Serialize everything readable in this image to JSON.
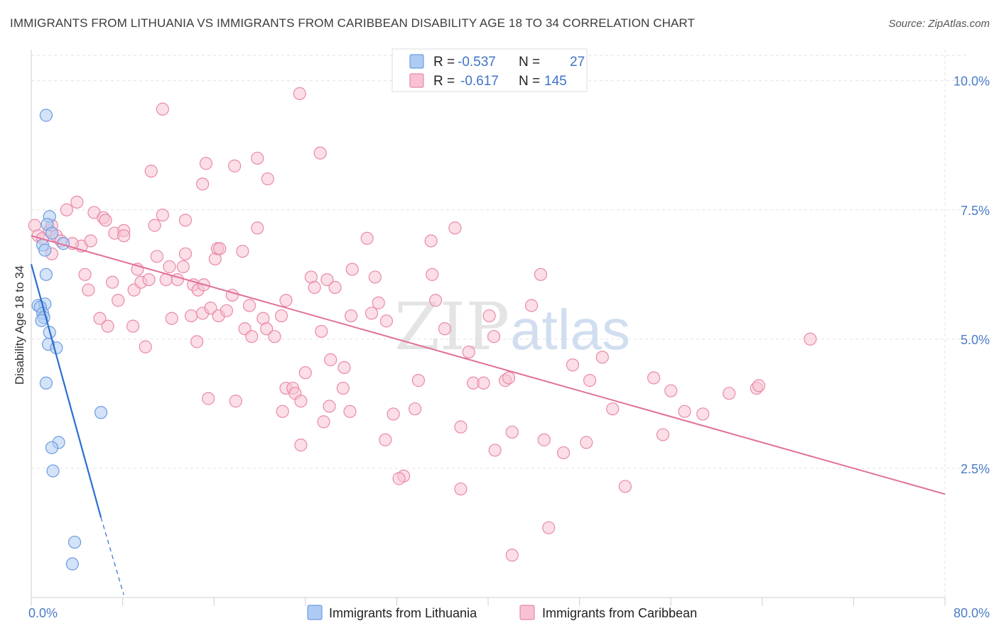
{
  "title": "IMMIGRANTS FROM LITHUANIA VS IMMIGRANTS FROM CARIBBEAN DISABILITY AGE 18 TO 34 CORRELATION CHART",
  "source": "Source: ZipAtlas.com",
  "watermark": {
    "zip": "ZIP",
    "atlas": "atlas"
  },
  "colors": {
    "lithuania_fill": "#aeccf3",
    "lithuania_stroke": "#6d9be0",
    "lithuania_line": "#2b6fd1",
    "caribbean_fill": "#f8c2d2",
    "caribbean_stroke": "#e98aa9",
    "caribbean_line": "#e0709a",
    "tick_text": "#4a7cc7",
    "grid": "#e2e2e2"
  },
  "stats_legend": {
    "r_label": "R =",
    "n_label": "N =",
    "rows": [
      {
        "r": "-0.537",
        "n": "27"
      },
      {
        "r": "-0.617",
        "n": "145"
      }
    ]
  },
  "chart_data": {
    "type": "scatter",
    "ylabel": "Disability Age 18 to 34",
    "xlim": [
      0,
      80
    ],
    "ylim": [
      0,
      10.6
    ],
    "x_ticks": [
      {
        "value": 0,
        "label": "0.0%"
      },
      {
        "value": 80,
        "label": "80.0%"
      }
    ],
    "y_ticks": [
      {
        "value": 2.5,
        "label": "2.5%"
      },
      {
        "value": 5.0,
        "label": "5.0%"
      },
      {
        "value": 7.5,
        "label": "7.5%"
      },
      {
        "value": 10.0,
        "label": "10.0%"
      }
    ],
    "grid": true,
    "legend_position": "bottom-center",
    "series": [
      {
        "name": "Immigrants from Lithuania",
        "trend": {
          "x1": 0,
          "y1": 6.45,
          "x2": 6.1,
          "y2": 1.55,
          "dash_to_x": 8.1,
          "dash_to_y": 0.05
        },
        "points": [
          [
            1.3,
            9.33
          ],
          [
            1.6,
            7.37
          ],
          [
            1.4,
            7.22
          ],
          [
            1.8,
            7.05
          ],
          [
            1.0,
            6.82
          ],
          [
            2.8,
            6.85
          ],
          [
            1.2,
            6.72
          ],
          [
            1.3,
            6.25
          ],
          [
            0.6,
            5.65
          ],
          [
            1.2,
            5.68
          ],
          [
            0.8,
            5.62
          ],
          [
            1.0,
            5.5
          ],
          [
            1.1,
            5.42
          ],
          [
            0.9,
            5.36
          ],
          [
            1.6,
            5.13
          ],
          [
            1.5,
            4.9
          ],
          [
            2.2,
            4.83
          ],
          [
            1.3,
            4.15
          ],
          [
            6.1,
            3.58
          ],
          [
            2.4,
            3.0
          ],
          [
            1.8,
            2.9
          ],
          [
            1.9,
            2.45
          ],
          [
            3.8,
            1.07
          ],
          [
            3.6,
            0.65
          ]
        ]
      },
      {
        "name": "Immigrants from Caribbean",
        "trend": {
          "x1": 0,
          "y1": 7.0,
          "x2": 80,
          "y2": 2.0
        },
        "points": [
          [
            0.3,
            7.2
          ],
          [
            0.6,
            7.0
          ],
          [
            1.0,
            6.95
          ],
          [
            1.6,
            7.1
          ],
          [
            1.8,
            7.2
          ],
          [
            2.2,
            7.0
          ],
          [
            2.6,
            6.9
          ],
          [
            1.8,
            6.65
          ],
          [
            3.1,
            7.5
          ],
          [
            4.0,
            7.65
          ],
          [
            5.5,
            7.45
          ],
          [
            6.3,
            7.35
          ],
          [
            6.5,
            7.3
          ],
          [
            7.3,
            7.05
          ],
          [
            8.1,
            7.1
          ],
          [
            8.1,
            7.0
          ],
          [
            4.4,
            6.8
          ],
          [
            5.2,
            6.9
          ],
          [
            3.6,
            6.85
          ],
          [
            4.7,
            6.25
          ],
          [
            5.0,
            5.95
          ],
          [
            7.1,
            6.1
          ],
          [
            7.6,
            5.75
          ],
          [
            9.0,
            5.95
          ],
          [
            9.3,
            6.35
          ],
          [
            9.6,
            6.1
          ],
          [
            10.3,
            6.15
          ],
          [
            10.8,
            7.2
          ],
          [
            10.5,
            8.25
          ],
          [
            11.5,
            7.4
          ],
          [
            11.0,
            6.6
          ],
          [
            12.1,
            6.4
          ],
          [
            12.8,
            6.15
          ],
          [
            13.3,
            6.4
          ],
          [
            13.5,
            6.65
          ],
          [
            14.2,
            6.05
          ],
          [
            14.6,
            5.95
          ],
          [
            14.0,
            5.45
          ],
          [
            14.5,
            4.95
          ],
          [
            12.3,
            5.4
          ],
          [
            11.8,
            6.15
          ],
          [
            8.9,
            5.25
          ],
          [
            6.0,
            5.4
          ],
          [
            6.7,
            5.25
          ],
          [
            10.0,
            4.85
          ],
          [
            15.3,
            8.4
          ],
          [
            15.0,
            5.5
          ],
          [
            15.1,
            6.05
          ],
          [
            15.5,
            3.85
          ],
          [
            15.7,
            5.6
          ],
          [
            16.1,
            6.55
          ],
          [
            16.3,
            6.75
          ],
          [
            16.4,
            5.45
          ],
          [
            16.5,
            6.75
          ],
          [
            17.1,
            5.55
          ],
          [
            17.6,
            5.85
          ],
          [
            17.9,
            3.8
          ],
          [
            18.5,
            6.7
          ],
          [
            18.7,
            5.2
          ],
          [
            19.1,
            5.65
          ],
          [
            19.3,
            5.05
          ],
          [
            19.8,
            7.15
          ],
          [
            20.3,
            5.4
          ],
          [
            20.6,
            5.2
          ],
          [
            21.3,
            5.05
          ],
          [
            21.9,
            5.45
          ],
          [
            22.3,
            5.75
          ],
          [
            22.0,
            3.6
          ],
          [
            22.3,
            4.05
          ],
          [
            22.9,
            4.05
          ],
          [
            23.1,
            3.95
          ],
          [
            23.6,
            3.8
          ],
          [
            23.6,
            2.95
          ],
          [
            24.0,
            4.35
          ],
          [
            24.5,
            6.2
          ],
          [
            24.8,
            6.0
          ],
          [
            25.4,
            5.15
          ],
          [
            26.2,
            4.6
          ],
          [
            26.1,
            3.7
          ],
          [
            25.6,
            3.4
          ],
          [
            25.9,
            6.15
          ],
          [
            26.6,
            6.0
          ],
          [
            27.9,
            3.6
          ],
          [
            28.1,
            6.35
          ],
          [
            27.3,
            4.05
          ],
          [
            27.4,
            4.45
          ],
          [
            28.0,
            5.45
          ],
          [
            29.4,
            6.95
          ],
          [
            30.1,
            6.2
          ],
          [
            30.4,
            5.7
          ],
          [
            29.8,
            5.5
          ],
          [
            31.1,
            5.35
          ],
          [
            31.0,
            3.05
          ],
          [
            31.7,
            3.55
          ],
          [
            32.6,
            2.35
          ],
          [
            32.2,
            2.3
          ],
          [
            33.6,
            3.65
          ],
          [
            33.9,
            4.2
          ],
          [
            35.0,
            6.9
          ],
          [
            35.4,
            5.75
          ],
          [
            35.1,
            6.25
          ],
          [
            36.2,
            5.2
          ],
          [
            37.6,
            3.3
          ],
          [
            37.6,
            2.1
          ],
          [
            37.1,
            7.15
          ],
          [
            38.3,
            4.75
          ],
          [
            38.7,
            4.15
          ],
          [
            39.6,
            4.15
          ],
          [
            40.1,
            5.45
          ],
          [
            40.5,
            5.05
          ],
          [
            40.6,
            2.85
          ],
          [
            41.5,
            4.2
          ],
          [
            41.8,
            4.25
          ],
          [
            42.1,
            3.2
          ],
          [
            42.1,
            0.82
          ],
          [
            43.8,
            5.65
          ],
          [
            44.6,
            6.25
          ],
          [
            44.9,
            3.05
          ],
          [
            45.3,
            1.35
          ],
          [
            46.6,
            2.8
          ],
          [
            47.4,
            4.5
          ],
          [
            48.6,
            3.0
          ],
          [
            48.9,
            4.2
          ],
          [
            50.0,
            4.65
          ],
          [
            50.9,
            3.65
          ],
          [
            52.0,
            2.15
          ],
          [
            54.5,
            4.25
          ],
          [
            55.3,
            3.15
          ],
          [
            56.0,
            4.0
          ],
          [
            57.2,
            3.6
          ],
          [
            58.8,
            3.55
          ],
          [
            61.1,
            3.95
          ],
          [
            63.5,
            4.05
          ],
          [
            63.7,
            4.1
          ],
          [
            68.2,
            5.0
          ],
          [
            23.5,
            9.75
          ],
          [
            11.5,
            9.45
          ],
          [
            17.8,
            8.35
          ],
          [
            19.8,
            8.5
          ],
          [
            25.3,
            8.6
          ],
          [
            15.0,
            8.0
          ],
          [
            20.7,
            8.1
          ],
          [
            13.5,
            7.3
          ]
        ]
      }
    ]
  }
}
